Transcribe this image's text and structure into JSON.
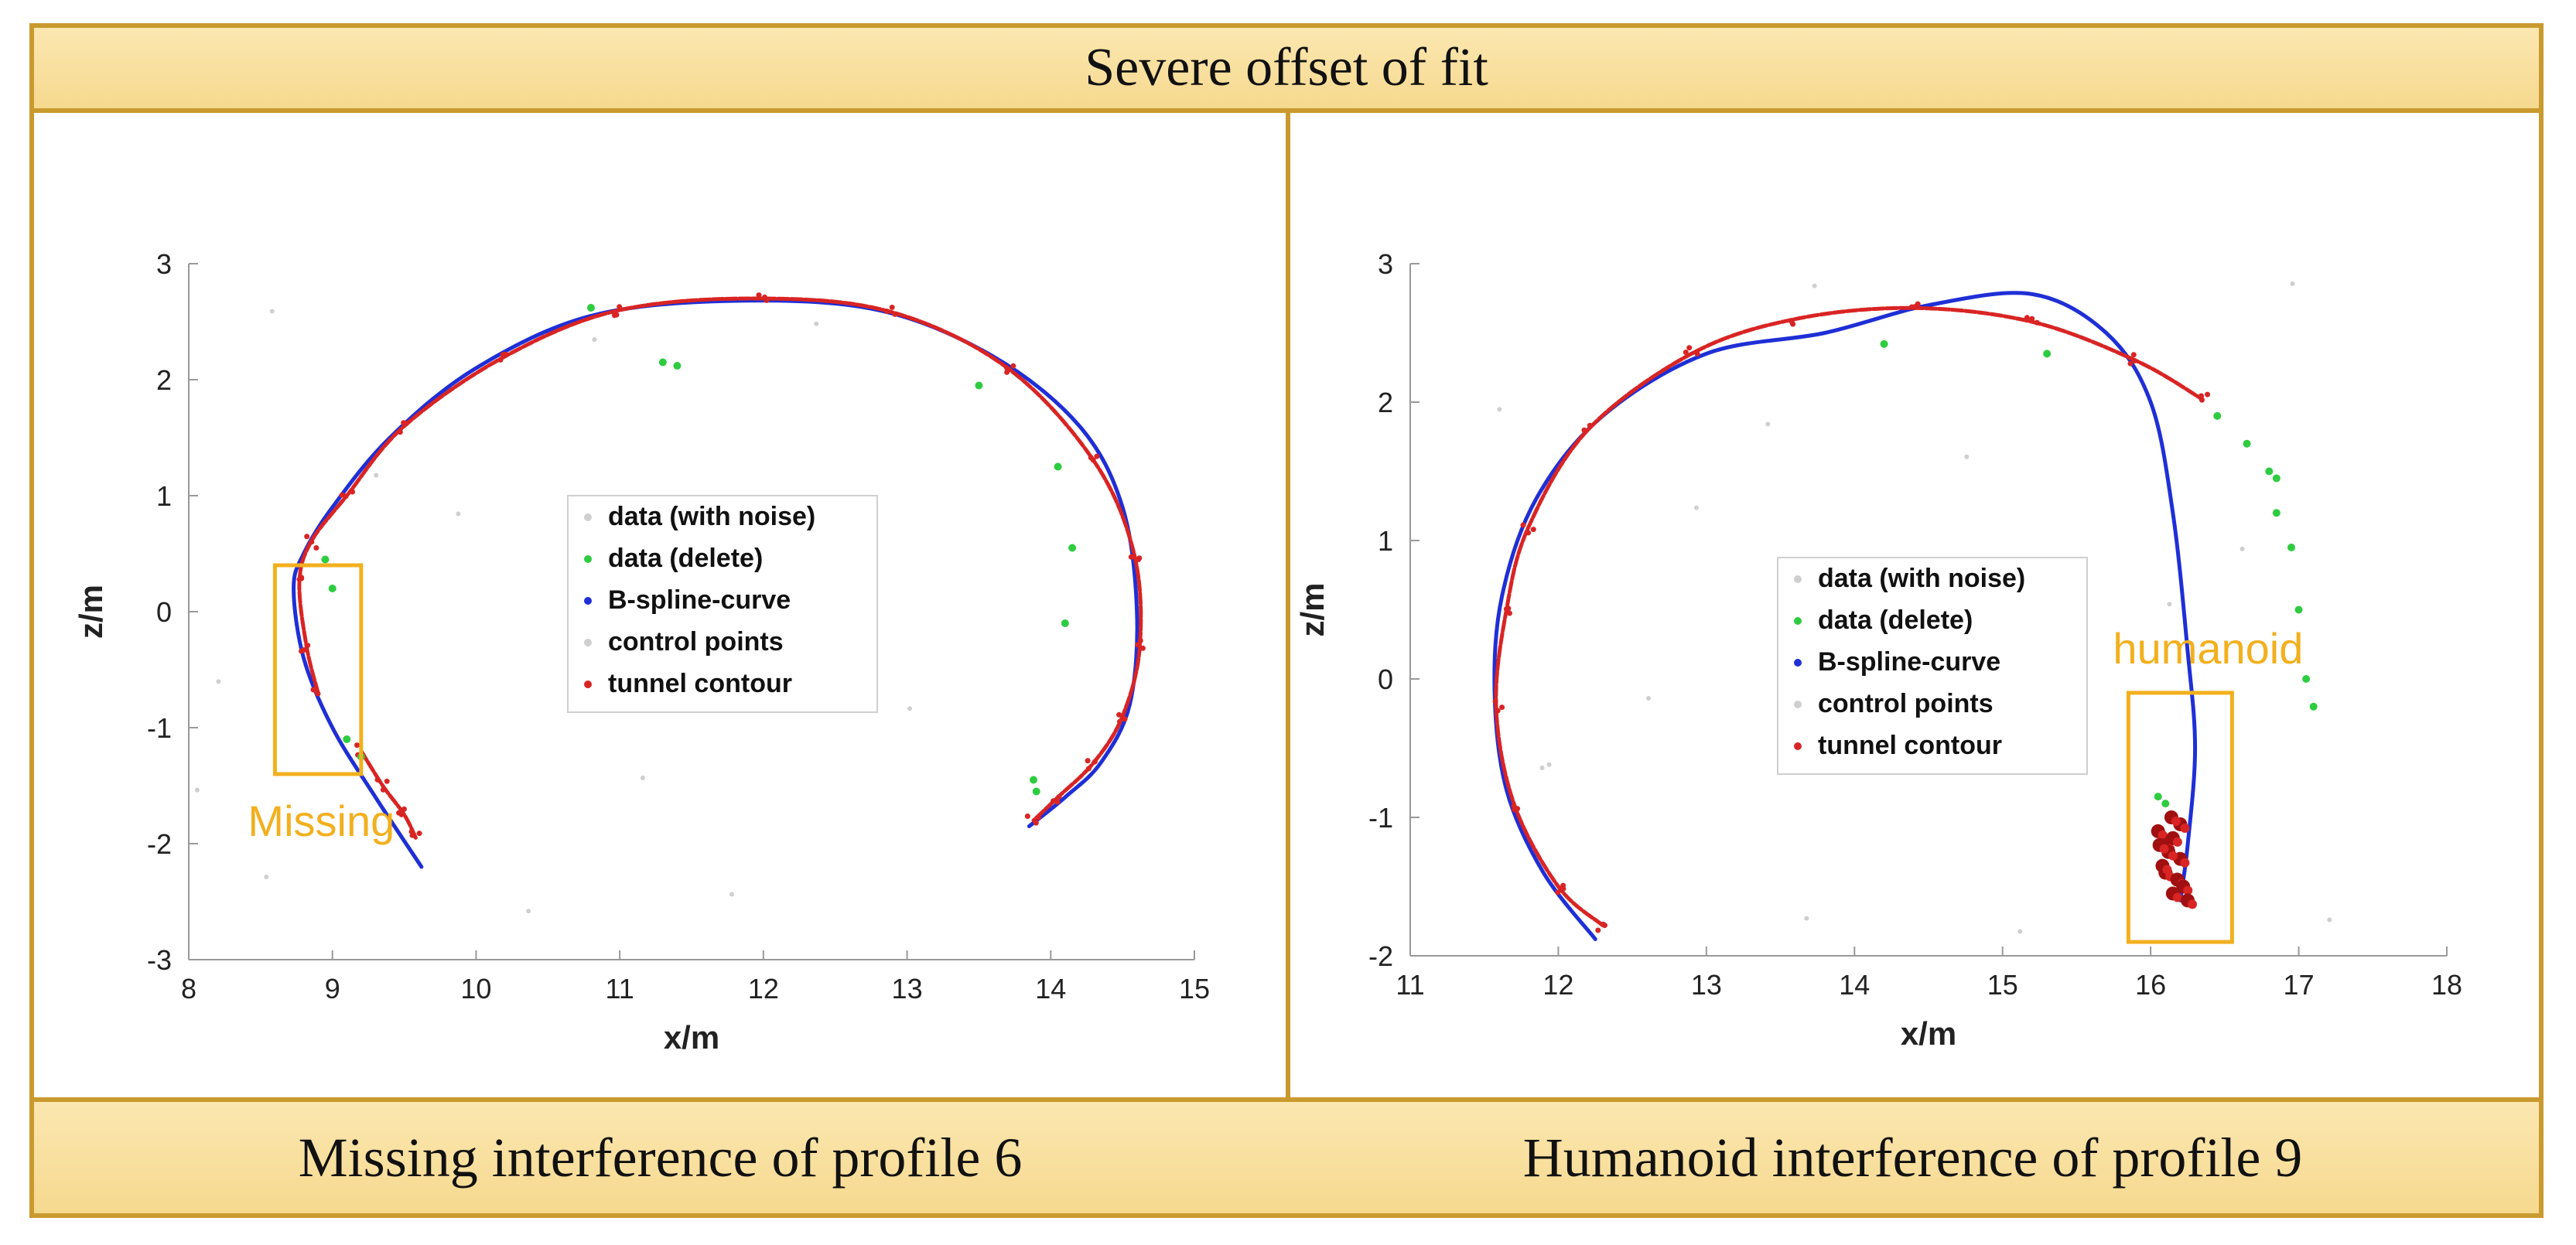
{
  "figure": {
    "title": "Severe offset of fit",
    "captions": [
      "Missing interference of profile 6",
      "Humanoid interference of profile 9"
    ]
  },
  "colors": {
    "frame": "#c99a2e",
    "band": "#f8dd98",
    "b_spline": "#1f2fd6",
    "tunnel": "#d92424",
    "tunnel_dark": "#a01010",
    "deleted": "#2ecc40",
    "noise": "#cfcfcf",
    "annotation": "#f2b01e"
  },
  "chart_data": [
    {
      "type": "line",
      "title": "Missing interference of profile 6",
      "xlabel": "x/m",
      "ylabel": "z/m",
      "xlim": [
        8,
        15
      ],
      "ylim": [
        -3,
        3
      ],
      "xticks": [
        8,
        9,
        10,
        11,
        12,
        13,
        14,
        15
      ],
      "yticks": [
        -3,
        -2,
        -1,
        0,
        1,
        2,
        3
      ],
      "legend": {
        "position": "center",
        "entries": [
          "data (with noise)",
          "data (delete)",
          "B-spline-curve",
          "control points",
          "tunnel contour"
        ]
      },
      "series": [
        {
          "name": "B-spline-curve",
          "x": [
            9.62,
            9.3,
            9.0,
            8.8,
            8.73,
            8.8,
            9.0,
            9.4,
            10.0,
            10.8,
            11.8,
            12.8,
            13.6,
            14.2,
            14.5,
            14.6,
            14.55,
            14.35,
            14.1,
            13.85
          ],
          "y": [
            -2.2,
            -1.6,
            -1.0,
            -0.4,
            0.2,
            0.5,
            0.9,
            1.5,
            2.1,
            2.55,
            2.68,
            2.6,
            2.2,
            1.6,
            0.9,
            0.0,
            -0.8,
            -1.3,
            -1.6,
            -1.85
          ]
        },
        {
          "name": "tunnel contour",
          "x": [
            8.9,
            8.82,
            8.77,
            8.85,
            9.1,
            9.5,
            10.2,
            11.0,
            12.0,
            12.9,
            13.7,
            14.3,
            14.58,
            14.62,
            14.5,
            14.3,
            14.05,
            13.88
          ],
          "y": [
            -0.7,
            -0.3,
            0.25,
            0.6,
            1.0,
            1.6,
            2.2,
            2.6,
            2.7,
            2.58,
            2.1,
            1.3,
            0.5,
            -0.3,
            -0.9,
            -1.3,
            -1.6,
            -1.8
          ]
        },
        {
          "name": "tunnel contour (lower)",
          "x": [
            9.2,
            9.35,
            9.5,
            9.58
          ],
          "y": [
            -1.2,
            -1.5,
            -1.75,
            -1.95
          ]
        },
        {
          "name": "data (delete)",
          "x": [
            10.8,
            11.3,
            11.4,
            13.5,
            14.05,
            14.15,
            14.1,
            13.88,
            13.9,
            8.95,
            9.0,
            9.1,
            9.2
          ],
          "y": [
            2.62,
            2.15,
            2.12,
            1.95,
            1.25,
            0.55,
            -0.1,
            -1.45,
            -1.55,
            0.45,
            0.2,
            -1.1,
            -1.25
          ]
        }
      ],
      "annotation": {
        "label": "Missing",
        "box_x": [
          8.6,
          9.2
        ],
        "box_y": [
          -1.4,
          0.4
        ]
      }
    },
    {
      "type": "line",
      "title": "Humanoid interference of profile 9",
      "xlabel": "x/m",
      "ylabel": "z/m",
      "xlim": [
        11,
        18
      ],
      "ylim": [
        -2,
        3
      ],
      "xticks": [
        11,
        12,
        13,
        14,
        15,
        16,
        17,
        18
      ],
      "yticks": [
        -2,
        -1,
        0,
        1,
        2,
        3
      ],
      "legend": {
        "position": "center",
        "entries": [
          "data (with noise)",
          "data (delete)",
          "B-spline-curve",
          "control points",
          "tunnel contour"
        ]
      },
      "series": [
        {
          "name": "B-spline-curve",
          "x": [
            12.25,
            11.9,
            11.65,
            11.57,
            11.62,
            11.85,
            12.3,
            13.0,
            13.8,
            14.5,
            15.2,
            15.7,
            16.0,
            16.15,
            16.25,
            16.3,
            16.25,
            16.2
          ],
          "y": [
            -1.88,
            -1.4,
            -0.8,
            -0.1,
            0.6,
            1.3,
            1.9,
            2.35,
            2.5,
            2.7,
            2.78,
            2.5,
            2.0,
            1.2,
            0.2,
            -0.5,
            -1.2,
            -1.6
          ]
        },
        {
          "name": "tunnel contour",
          "x": [
            12.3,
            12.0,
            11.7,
            11.58,
            11.65,
            11.8,
            12.2,
            12.9,
            13.6,
            14.4,
            15.2,
            15.9,
            16.35
          ],
          "y": [
            -1.78,
            -1.5,
            -0.9,
            -0.2,
            0.5,
            1.1,
            1.8,
            2.35,
            2.6,
            2.68,
            2.58,
            2.3,
            2.02
          ]
        },
        {
          "name": "data (delete)",
          "x": [
            16.45,
            16.65,
            16.8,
            16.85,
            16.95,
            17.0,
            17.05,
            17.1,
            16.05,
            16.1,
            14.2,
            15.3,
            16.85
          ],
          "y": [
            1.9,
            1.7,
            1.5,
            1.2,
            0.95,
            0.5,
            0.0,
            -0.2,
            -0.85,
            -0.9,
            2.42,
            2.35,
            1.45
          ]
        },
        {
          "name": "humanoid cluster",
          "x": [
            16.05,
            16.1,
            16.15,
            16.2,
            16.1,
            16.18,
            16.12,
            16.22,
            16.08,
            16.15,
            16.2,
            16.14,
            16.25,
            16.06
          ],
          "y": [
            -1.1,
            -1.2,
            -1.15,
            -1.3,
            -1.4,
            -1.45,
            -1.25,
            -1.5,
            -1.35,
            -1.55,
            -1.05,
            -1.0,
            -1.6,
            -1.2
          ]
        }
      ],
      "annotation": {
        "label": "humanoid",
        "box_x": [
          15.85,
          16.55
        ],
        "box_y": [
          -1.9,
          -0.1
        ]
      }
    }
  ]
}
